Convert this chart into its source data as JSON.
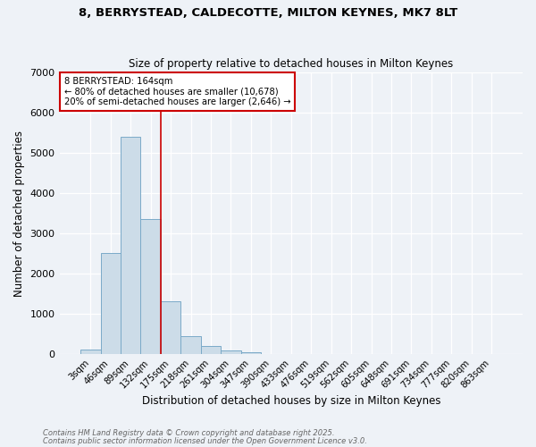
{
  "title": "8, BERRYSTEAD, CALDECOTTE, MILTON KEYNES, MK7 8LT",
  "subtitle": "Size of property relative to detached houses in Milton Keynes",
  "xlabel": "Distribution of detached houses by size in Milton Keynes",
  "ylabel": "Number of detached properties",
  "bar_color": "#ccdce8",
  "bar_edge_color": "#7aaac8",
  "categories": [
    "3sqm",
    "46sqm",
    "89sqm",
    "132sqm",
    "175sqm",
    "218sqm",
    "261sqm",
    "304sqm",
    "347sqm",
    "390sqm",
    "433sqm",
    "476sqm",
    "519sqm",
    "562sqm",
    "605sqm",
    "648sqm",
    "691sqm",
    "734sqm",
    "777sqm",
    "820sqm",
    "863sqm"
  ],
  "values": [
    100,
    2500,
    5400,
    3350,
    1300,
    450,
    200,
    90,
    40,
    10,
    0,
    0,
    0,
    0,
    0,
    0,
    0,
    0,
    0,
    0,
    0
  ],
  "ylim": [
    0,
    7000
  ],
  "yticks": [
    0,
    1000,
    2000,
    3000,
    4000,
    5000,
    6000,
    7000
  ],
  "red_line_index": 3.5,
  "annotation_title": "8 BERRYSTEAD: 164sqm",
  "annotation_line1": "← 80% of detached houses are smaller (10,678)",
  "annotation_line2": "20% of semi-detached houses are larger (2,646) →",
  "annotation_box_color": "#ffffff",
  "annotation_box_edge_color": "#cc0000",
  "red_line_color": "#cc0000",
  "footnote1": "Contains HM Land Registry data © Crown copyright and database right 2025.",
  "footnote2": "Contains public sector information licensed under the Open Government Licence v3.0.",
  "background_color": "#eef2f7",
  "grid_color": "#ffffff"
}
